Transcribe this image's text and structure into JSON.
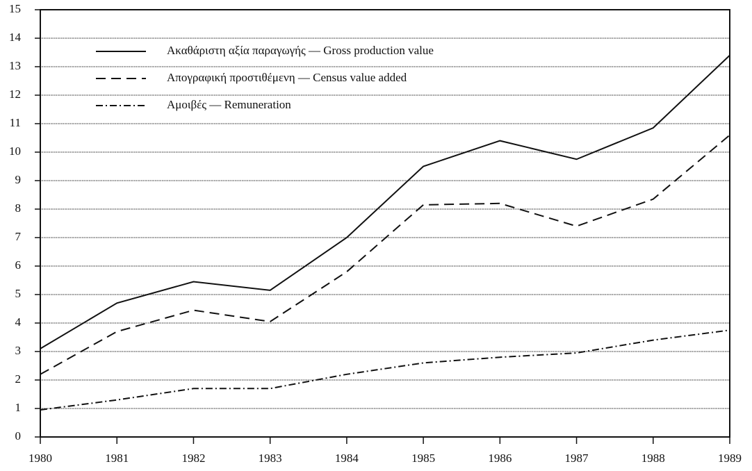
{
  "chart_data": {
    "type": "line",
    "x": [
      1980,
      1981,
      1982,
      1983,
      1984,
      1985,
      1986,
      1987,
      1988,
      1989
    ],
    "xlim": [
      1980,
      1989
    ],
    "xticks": [
      1980,
      1981,
      1982,
      1983,
      1984,
      1985,
      1986,
      1987,
      1988,
      1989
    ],
    "ylim": [
      0,
      15
    ],
    "yticks": [
      0,
      1,
      2,
      3,
      4,
      5,
      6,
      7,
      8,
      9,
      10,
      11,
      12,
      13,
      14,
      15
    ],
    "grid": true,
    "legend": "upper left",
    "series": [
      {
        "name": "Ακαθάριστη αξία παραγωγής — Gross production value",
        "color": "#111111",
        "dash": "solid",
        "values": [
          3.1,
          4.7,
          5.45,
          5.15,
          7.0,
          9.5,
          10.4,
          9.75,
          10.85,
          13.4
        ]
      },
      {
        "name": "Απογραφική προστιθέμενη — Census value added",
        "color": "#111111",
        "dash": "dashed",
        "values": [
          2.2,
          3.7,
          4.45,
          4.05,
          5.8,
          8.15,
          8.2,
          7.4,
          8.35,
          10.6
        ]
      },
      {
        "name": "Αμοιβές — Remuneration",
        "color": "#111111",
        "dash": "dashdot",
        "values": [
          0.95,
          1.3,
          1.7,
          1.7,
          2.2,
          2.6,
          2.8,
          2.95,
          3.4,
          3.75
        ]
      }
    ]
  }
}
